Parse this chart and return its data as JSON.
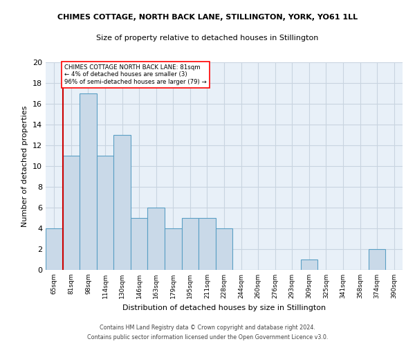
{
  "title": "CHIMES COTTAGE, NORTH BACK LANE, STILLINGTON, YORK, YO61 1LL",
  "subtitle": "Size of property relative to detached houses in Stillington",
  "xlabel": "Distribution of detached houses by size in Stillington",
  "ylabel": "Number of detached properties",
  "categories": [
    "65sqm",
    "81sqm",
    "98sqm",
    "114sqm",
    "130sqm",
    "146sqm",
    "163sqm",
    "179sqm",
    "195sqm",
    "211sqm",
    "228sqm",
    "244sqm",
    "260sqm",
    "276sqm",
    "293sqm",
    "309sqm",
    "325sqm",
    "341sqm",
    "358sqm",
    "374sqm",
    "390sqm"
  ],
  "values": [
    4,
    11,
    17,
    11,
    13,
    5,
    6,
    4,
    5,
    5,
    4,
    0,
    0,
    0,
    0,
    1,
    0,
    0,
    0,
    2,
    0
  ],
  "bar_color": "#c9d9e8",
  "bar_edge_color": "#5a9fc4",
  "highlight_bar_index": 1,
  "highlight_line_color": "#cc0000",
  "ylim": [
    0,
    20
  ],
  "yticks": [
    0,
    2,
    4,
    6,
    8,
    10,
    12,
    14,
    16,
    18,
    20
  ],
  "annotation_text": "CHIMES COTTAGE NORTH BACK LANE: 81sqm\n← 4% of detached houses are smaller (3)\n96% of semi-detached houses are larger (79) →",
  "footer1": "Contains HM Land Registry data © Crown copyright and database right 2024.",
  "footer2": "Contains public sector information licensed under the Open Government Licence v3.0.",
  "background_color": "#ffffff",
  "ax_background_color": "#e8f0f8",
  "grid_color": "#c8d4e0"
}
